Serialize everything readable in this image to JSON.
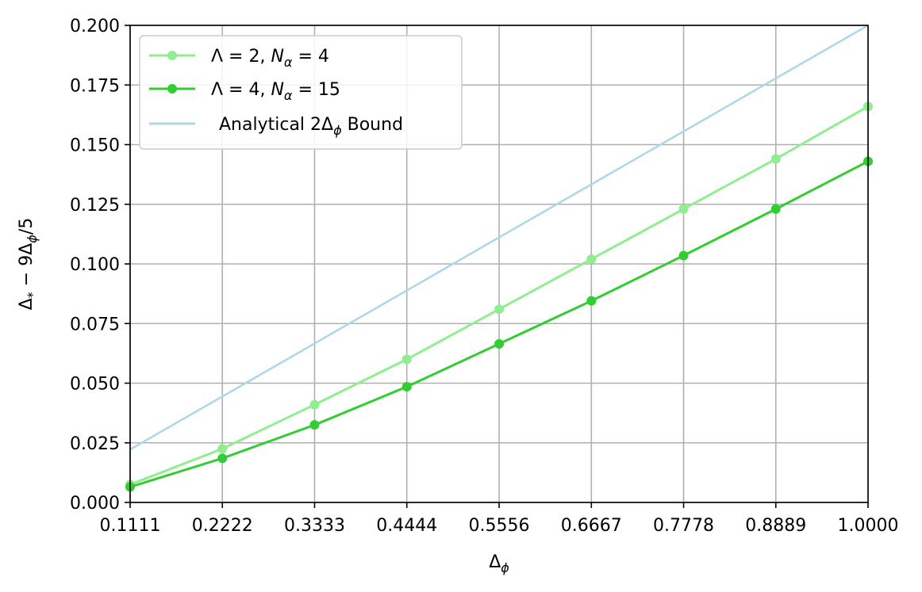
{
  "chart_data": {
    "type": "line",
    "xlabel": "Δϕ",
    "ylabel": "Δ* − 9Δϕ/5",
    "xlim": [
      0.1111,
      1.0
    ],
    "ylim": [
      0.0,
      0.2
    ],
    "x_ticks": [
      "0.1111",
      "0.2222",
      "0.3333",
      "0.4444",
      "0.5556",
      "0.6667",
      "0.7778",
      "0.8889",
      "1.0000"
    ],
    "y_ticks": [
      "0.000",
      "0.025",
      "0.050",
      "0.075",
      "0.100",
      "0.125",
      "0.150",
      "0.175",
      "0.200"
    ],
    "grid": true,
    "legend_position": "top-left",
    "x": [
      0.1111,
      0.2222,
      0.3333,
      0.4444,
      0.5556,
      0.6667,
      0.7778,
      0.8889,
      1.0
    ],
    "series": [
      {
        "name": "Λ = 2, Nα = 4",
        "color": "#90ee90",
        "marker": "circle",
        "values": [
          0.0075,
          0.0225,
          0.041,
          0.06,
          0.081,
          0.102,
          0.123,
          0.144,
          0.166
        ]
      },
      {
        "name": "Λ = 4, Nα = 15",
        "color": "#32cd32",
        "marker": "circle",
        "values": [
          0.0065,
          0.0185,
          0.0325,
          0.0485,
          0.0665,
          0.0845,
          0.1035,
          0.123,
          0.143
        ]
      },
      {
        "name": "Analytical 2Δϕ Bound",
        "color": "#add8e6",
        "marker": "none",
        "x": [
          0.1111,
          1.0
        ],
        "values": [
          0.0222,
          0.2
        ]
      }
    ]
  }
}
